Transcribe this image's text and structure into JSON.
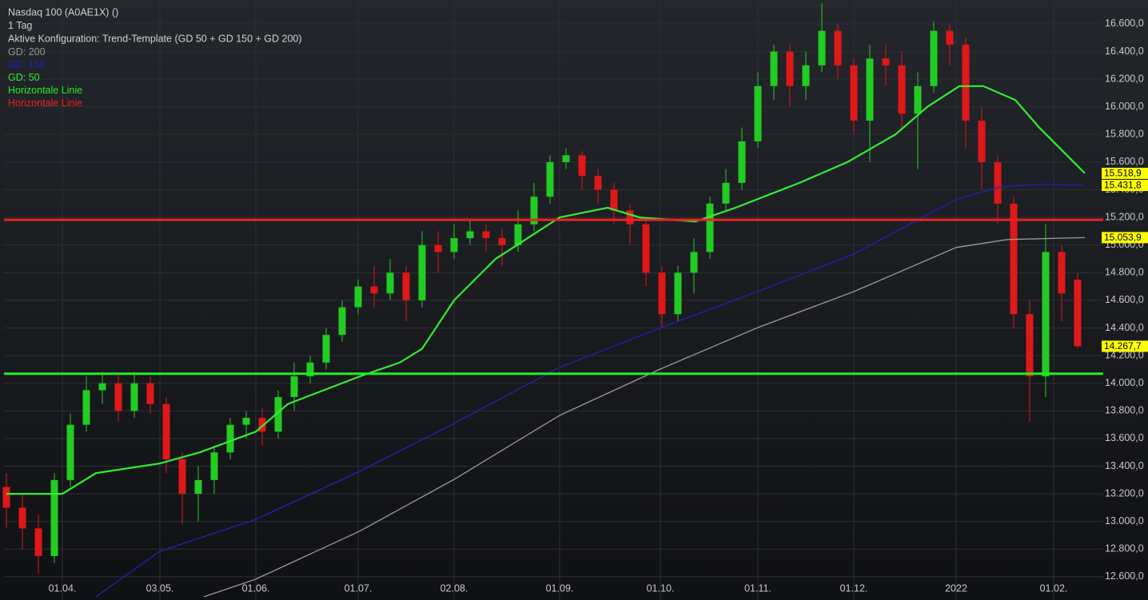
{
  "chart_data": {
    "type": "candlestick",
    "legend_lines": [
      {
        "text": "Nasdaq 100 (A0AE1X) ()",
        "color": "#d0d0d0"
      },
      {
        "text": "1 Tag",
        "color": "#d0d0d0"
      },
      {
        "text": "Aktive Konfiguration: Trend-Template (GD 50 + GD 150 + GD 200)",
        "color": "#d0d0d0"
      }
    ],
    "xlim": [
      -0.15,
      68.6
    ],
    "xticks": [
      {
        "value": 3.5,
        "label": "01.04."
      },
      {
        "value": 9.6,
        "label": "03.05."
      },
      {
        "value": 15.6,
        "label": "01.06."
      },
      {
        "value": 22,
        "label": "01.07."
      },
      {
        "value": 28,
        "label": "02.08."
      },
      {
        "value": 34.6,
        "label": "01.09."
      },
      {
        "value": 40.9,
        "label": "01.10."
      },
      {
        "value": 47,
        "label": "01.11."
      },
      {
        "value": 53,
        "label": "01.12."
      },
      {
        "value": 59.4,
        "label": "2022"
      },
      {
        "value": 65.5,
        "label": "01.02."
      }
    ],
    "ylim": [
      12432,
      16773
    ],
    "yticks": [
      {
        "value": 12600,
        "label": "12.600,0"
      },
      {
        "value": 12800,
        "label": "12.800,0"
      },
      {
        "value": 13000,
        "label": "13.000,0"
      },
      {
        "value": 13200,
        "label": "13.200,0"
      },
      {
        "value": 13400,
        "label": "13.400,0"
      },
      {
        "value": 13600,
        "label": "13.600,0"
      },
      {
        "value": 13800,
        "label": "13.800,0"
      },
      {
        "value": 14000,
        "label": "14.000,0"
      },
      {
        "value": 14200,
        "label": "14.200,0"
      },
      {
        "value": 14400,
        "label": "14.400,0"
      },
      {
        "value": 14600,
        "label": "14.600,0"
      },
      {
        "value": 14800,
        "label": "14.800,0"
      },
      {
        "value": 15000,
        "label": "15.000,0"
      },
      {
        "value": 15200,
        "label": "15.200,0"
      },
      {
        "value": 15400,
        "label": "15.400,0"
      },
      {
        "value": 15600,
        "label": "15.600,0"
      },
      {
        "value": 15800,
        "label": "15.800,0"
      },
      {
        "value": 16000,
        "label": "16.000,0"
      },
      {
        "value": 16200,
        "label": "16.200,0"
      },
      {
        "value": 16400,
        "label": "16.400,0"
      },
      {
        "value": 16600,
        "label": "16.600,0"
      }
    ],
    "grid": true,
    "up_color": "#22cc22",
    "down_color": "#e01818",
    "open": [
      13250,
      13100,
      12950,
      12750,
      13300,
      13700,
      13950,
      14000,
      13800,
      14000,
      13850,
      13450,
      13200,
      13300,
      13500,
      13700,
      13750,
      13650,
      13900,
      14050,
      14150,
      14350,
      14550,
      14700,
      14650,
      14800,
      14600,
      15000,
      14950,
      15050,
      15100,
      15050,
      15000,
      15150,
      15350,
      15600,
      15650,
      15500,
      15400,
      15250,
      15150,
      14800,
      14500,
      14800,
      14950,
      15300,
      15450,
      15750,
      16150,
      16400,
      16150,
      16300,
      16550,
      16300,
      15900,
      16350,
      16300,
      15950,
      16150,
      16550,
      16450,
      15900,
      15600,
      15300,
      14500,
      14050,
      14950,
      14750
    ],
    "high": [
      13350,
      13200,
      13050,
      13350,
      13780,
      14050,
      14080,
      14070,
      14080,
      14050,
      13900,
      13500,
      13400,
      13550,
      13750,
      13800,
      13820,
      13950,
      14150,
      14200,
      14400,
      14600,
      14750,
      14850,
      14900,
      14850,
      15100,
      15100,
      15150,
      15180,
      15150,
      15120,
      15250,
      15450,
      15650,
      15700,
      15680,
      15550,
      15450,
      15300,
      15200,
      14850,
      14850,
      15050,
      15350,
      15550,
      15850,
      16250,
      16450,
      16450,
      16400,
      16750,
      16600,
      16350,
      16450,
      16450,
      16400,
      16250,
      16620,
      16600,
      16500,
      16000,
      15650,
      15350,
      14600,
      15150,
      15000,
      14800
    ],
    "low": [
      12950,
      12800,
      12620,
      12700,
      13250,
      13650,
      13850,
      13720,
      13750,
      13780,
      13350,
      12980,
      13000,
      13200,
      13450,
      13600,
      13550,
      13600,
      13800,
      14000,
      14100,
      14300,
      14500,
      14550,
      14600,
      14450,
      14550,
      14800,
      14900,
      15000,
      14950,
      14850,
      14950,
      15100,
      15300,
      15550,
      15400,
      15300,
      15150,
      15000,
      14700,
      14400,
      14450,
      14650,
      14900,
      15250,
      15400,
      15700,
      16050,
      16000,
      16050,
      16250,
      16200,
      15800,
      15600,
      16150,
      15850,
      15550,
      16100,
      16300,
      15700,
      15400,
      15150,
      14400,
      13720,
      13900,
      14450,
      14250
    ],
    "close": [
      13100,
      12950,
      12750,
      13300,
      13700,
      13950,
      14000,
      13800,
      14000,
      13850,
      13450,
      13200,
      13300,
      13500,
      13700,
      13750,
      13650,
      13900,
      14050,
      14150,
      14350,
      14550,
      14700,
      14650,
      14800,
      14600,
      15000,
      14950,
      15050,
      15100,
      15050,
      15000,
      15150,
      15350,
      15600,
      15650,
      15500,
      15400,
      15250,
      15150,
      14800,
      14500,
      14800,
      14950,
      15300,
      15450,
      15750,
      16150,
      16400,
      16150,
      16300,
      16550,
      16300,
      15900,
      16350,
      16300,
      15950,
      16150,
      16550,
      16450,
      15900,
      15600,
      15300,
      14500,
      14050,
      14950,
      14650,
      14268
    ],
    "series": [
      {
        "name": "GD: 200",
        "color": "#9a9a9a",
        "x": [
          12.35,
          15.6,
          22.1,
          28,
          34.6,
          40.9,
          47,
          53,
          59.4,
          62.6,
          67.45
        ],
        "values": [
          12455,
          12583,
          12930,
          13305,
          13768,
          14103,
          14403,
          14663,
          14982,
          15040,
          15054
        ]
      },
      {
        "name": "GD: 150",
        "color": "#2323b8",
        "x": [
          5.6,
          9.6,
          15.6,
          22.1,
          28,
          34.6,
          40.9,
          47,
          53,
          59.4,
          62.1,
          64.6,
          67.45
        ],
        "values": [
          12455,
          12785,
          13015,
          13363,
          13710,
          14115,
          14400,
          14665,
          14935,
          15330,
          15420,
          15440,
          15432
        ]
      },
      {
        "name": "GD: 50",
        "color": "#33ee33",
        "x": [
          0,
          3.5,
          5.6,
          9.6,
          12.1,
          15.6,
          17.6,
          22.1,
          24.6,
          26,
          28,
          30.6,
          32.6,
          34.6,
          37.6,
          39.6,
          43.1,
          45.6,
          49.6,
          52.6,
          55.6,
          57.6,
          59.6,
          61.1,
          63.1,
          64.6,
          67.45
        ],
        "values": [
          13200,
          13200,
          13350,
          13420,
          13500,
          13650,
          13850,
          14050,
          14150,
          14250,
          14600,
          14900,
          15050,
          15200,
          15270,
          15200,
          15170,
          15270,
          15450,
          15600,
          15800,
          16000,
          16150,
          16150,
          16050,
          15850,
          15519
        ]
      }
    ],
    "hlines": [
      {
        "name": "Horizontale Linie",
        "color": "#22ee22",
        "value": 14069
      },
      {
        "name": "Horizontale Linie",
        "color": "#ee2222",
        "value": 15183
      }
    ],
    "price_labels": [
      {
        "value": 15518.9,
        "label": "15.518,9"
      },
      {
        "value": 15431.8,
        "label": "15.431,8"
      },
      {
        "value": 15053.9,
        "label": "15.053,9"
      },
      {
        "value": 14267.7,
        "label": "14.267,7"
      }
    ]
  }
}
